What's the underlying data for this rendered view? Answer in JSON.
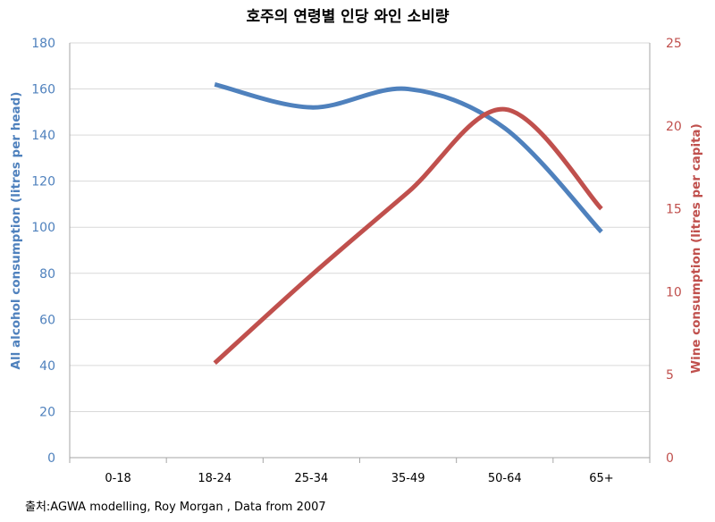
{
  "chart_data": {
    "type": "line",
    "title": "호주의 연령별 인당 와인 소비량",
    "categories": [
      "0-18",
      "18-24",
      "25-34",
      "35-49",
      "50-64",
      "65+"
    ],
    "y_left": {
      "label": "All alcohol consumption (litres per head)",
      "ticks": [
        "0",
        "20",
        "40",
        "60",
        "80",
        "100",
        "120",
        "140",
        "160",
        "180"
      ],
      "ylim": [
        0,
        180
      ]
    },
    "y_right": {
      "label": "Wine consumption (litres per capita)",
      "ticks": [
        "0",
        "5",
        "10",
        "15",
        "20",
        "25"
      ],
      "ylim": [
        0,
        25
      ]
    },
    "series": [
      {
        "name": "",
        "axis": "left",
        "color": "#4f81bd",
        "values": [
          null,
          162,
          152,
          160,
          143,
          98
        ]
      },
      {
        "name": "",
        "axis": "right",
        "color": "#c0504d",
        "values": [
          null,
          5.7,
          11,
          16,
          21,
          15
        ]
      }
    ],
    "grid": true,
    "legend": "none"
  },
  "source": "출처:AGWA modelling, Roy Morgan  , Data from 2007"
}
